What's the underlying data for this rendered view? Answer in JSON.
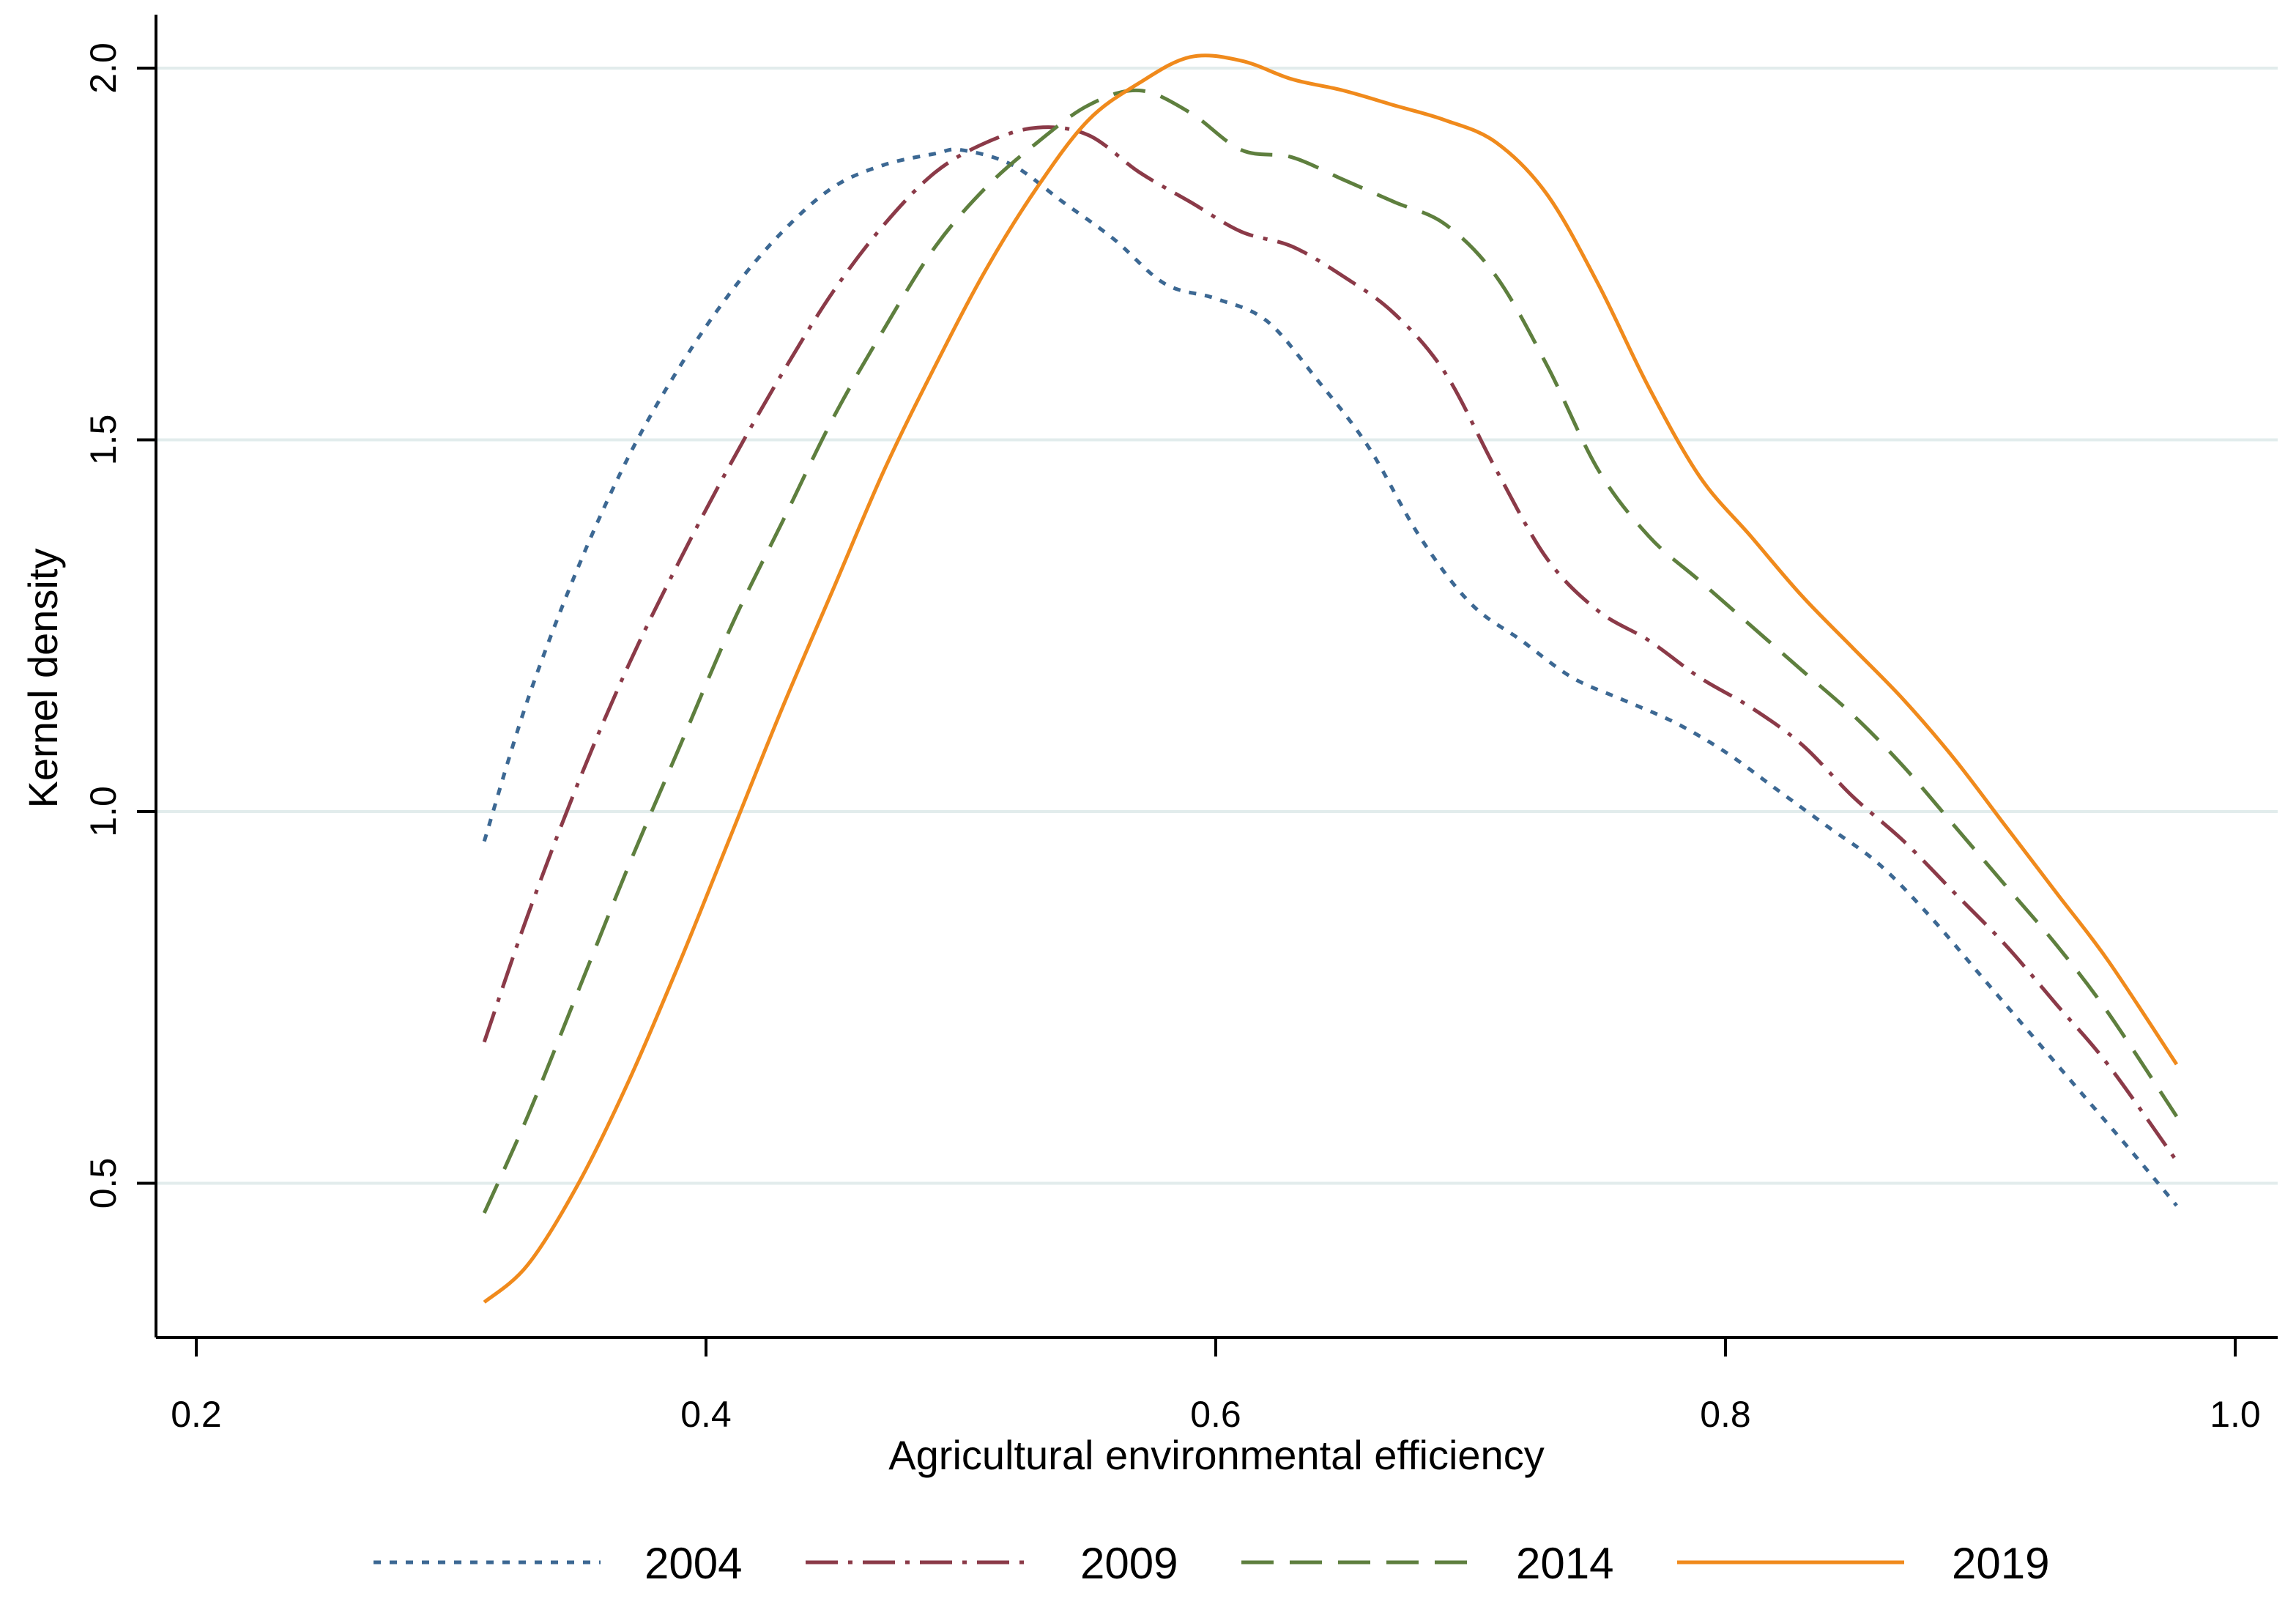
{
  "chart_data": {
    "type": "line",
    "xlabel": "Agricultural environmental efficiency",
    "ylabel": "Kernel density",
    "xlim": [
      0.18,
      1.02
    ],
    "ylim": [
      0.29,
      2.07
    ],
    "xticks": [
      "0.2",
      "0.4",
      "0.6",
      "0.8",
      "1.0"
    ],
    "yticks": [
      "0.5",
      "1.0",
      "1.5",
      "2.0"
    ],
    "grid": "horizontal",
    "legend_position": "bottom",
    "series": [
      {
        "name": "2004",
        "color": "#3c6893",
        "dash": "dotted",
        "points": [
          [
            0.313,
            0.96
          ],
          [
            0.33,
            1.15
          ],
          [
            0.35,
            1.33
          ],
          [
            0.37,
            1.48
          ],
          [
            0.39,
            1.6
          ],
          [
            0.41,
            1.7
          ],
          [
            0.43,
            1.78
          ],
          [
            0.45,
            1.84
          ],
          [
            0.47,
            1.87
          ],
          [
            0.49,
            1.885
          ],
          [
            0.5,
            1.89
          ],
          [
            0.52,
            1.87
          ],
          [
            0.54,
            1.82
          ],
          [
            0.56,
            1.77
          ],
          [
            0.58,
            1.71
          ],
          [
            0.6,
            1.69
          ],
          [
            0.62,
            1.66
          ],
          [
            0.64,
            1.58
          ],
          [
            0.66,
            1.49
          ],
          [
            0.68,
            1.37
          ],
          [
            0.7,
            1.28
          ],
          [
            0.72,
            1.23
          ],
          [
            0.74,
            1.18
          ],
          [
            0.76,
            1.15
          ],
          [
            0.78,
            1.12
          ],
          [
            0.8,
            1.08
          ],
          [
            0.82,
            1.03
          ],
          [
            0.84,
            0.98
          ],
          [
            0.86,
            0.93
          ],
          [
            0.88,
            0.86
          ],
          [
            0.9,
            0.78
          ],
          [
            0.92,
            0.7
          ],
          [
            0.94,
            0.62
          ],
          [
            0.96,
            0.54
          ],
          [
            0.977,
            0.47
          ]
        ]
      },
      {
        "name": "2009",
        "color": "#8b3a48",
        "dash": "dashdot",
        "points": [
          [
            0.313,
            0.69
          ],
          [
            0.33,
            0.86
          ],
          [
            0.35,
            1.04
          ],
          [
            0.37,
            1.2
          ],
          [
            0.39,
            1.34
          ],
          [
            0.41,
            1.47
          ],
          [
            0.43,
            1.59
          ],
          [
            0.45,
            1.7
          ],
          [
            0.47,
            1.79
          ],
          [
            0.49,
            1.86
          ],
          [
            0.51,
            1.9
          ],
          [
            0.53,
            1.92
          ],
          [
            0.55,
            1.91
          ],
          [
            0.57,
            1.86
          ],
          [
            0.59,
            1.82
          ],
          [
            0.61,
            1.78
          ],
          [
            0.63,
            1.76
          ],
          [
            0.65,
            1.72
          ],
          [
            0.67,
            1.67
          ],
          [
            0.69,
            1.59
          ],
          [
            0.71,
            1.46
          ],
          [
            0.73,
            1.34
          ],
          [
            0.75,
            1.27
          ],
          [
            0.77,
            1.23
          ],
          [
            0.79,
            1.18
          ],
          [
            0.81,
            1.14
          ],
          [
            0.83,
            1.09
          ],
          [
            0.85,
            1.02
          ],
          [
            0.87,
            0.96
          ],
          [
            0.89,
            0.89
          ],
          [
            0.91,
            0.82
          ],
          [
            0.93,
            0.74
          ],
          [
            0.95,
            0.66
          ],
          [
            0.977,
            0.53
          ]
        ]
      },
      {
        "name": "2014",
        "color": "#5e7f3e",
        "dash": "dashed",
        "points": [
          [
            0.313,
            0.46
          ],
          [
            0.33,
            0.59
          ],
          [
            0.35,
            0.76
          ],
          [
            0.37,
            0.93
          ],
          [
            0.39,
            1.09
          ],
          [
            0.41,
            1.25
          ],
          [
            0.43,
            1.39
          ],
          [
            0.45,
            1.53
          ],
          [
            0.47,
            1.65
          ],
          [
            0.49,
            1.76
          ],
          [
            0.51,
            1.84
          ],
          [
            0.53,
            1.9
          ],
          [
            0.55,
            1.95
          ],
          [
            0.57,
            1.97
          ],
          [
            0.59,
            1.94
          ],
          [
            0.61,
            1.89
          ],
          [
            0.63,
            1.88
          ],
          [
            0.65,
            1.85
          ],
          [
            0.67,
            1.82
          ],
          [
            0.69,
            1.79
          ],
          [
            0.71,
            1.72
          ],
          [
            0.73,
            1.6
          ],
          [
            0.75,
            1.46
          ],
          [
            0.77,
            1.37
          ],
          [
            0.79,
            1.31
          ],
          [
            0.81,
            1.25
          ],
          [
            0.83,
            1.19
          ],
          [
            0.85,
            1.13
          ],
          [
            0.87,
            1.06
          ],
          [
            0.89,
            0.98
          ],
          [
            0.91,
            0.9
          ],
          [
            0.93,
            0.82
          ],
          [
            0.95,
            0.73
          ],
          [
            0.977,
            0.59
          ]
        ]
      },
      {
        "name": "2019",
        "color": "#f08a1c",
        "dash": "solid",
        "points": [
          [
            0.313,
            0.34
          ],
          [
            0.33,
            0.39
          ],
          [
            0.35,
            0.5
          ],
          [
            0.37,
            0.64
          ],
          [
            0.39,
            0.8
          ],
          [
            0.41,
            0.97
          ],
          [
            0.43,
            1.14
          ],
          [
            0.45,
            1.3
          ],
          [
            0.47,
            1.46
          ],
          [
            0.49,
            1.6
          ],
          [
            0.51,
            1.73
          ],
          [
            0.53,
            1.84
          ],
          [
            0.55,
            1.93
          ],
          [
            0.57,
            1.98
          ],
          [
            0.59,
            2.015
          ],
          [
            0.61,
            2.01
          ],
          [
            0.63,
            1.985
          ],
          [
            0.65,
            1.97
          ],
          [
            0.67,
            1.95
          ],
          [
            0.69,
            1.93
          ],
          [
            0.71,
            1.9
          ],
          [
            0.73,
            1.83
          ],
          [
            0.75,
            1.71
          ],
          [
            0.77,
            1.57
          ],
          [
            0.79,
            1.45
          ],
          [
            0.81,
            1.37
          ],
          [
            0.83,
            1.29
          ],
          [
            0.85,
            1.22
          ],
          [
            0.87,
            1.15
          ],
          [
            0.89,
            1.07
          ],
          [
            0.91,
            0.98
          ],
          [
            0.93,
            0.89
          ],
          [
            0.95,
            0.8
          ],
          [
            0.977,
            0.66
          ]
        ]
      }
    ]
  }
}
